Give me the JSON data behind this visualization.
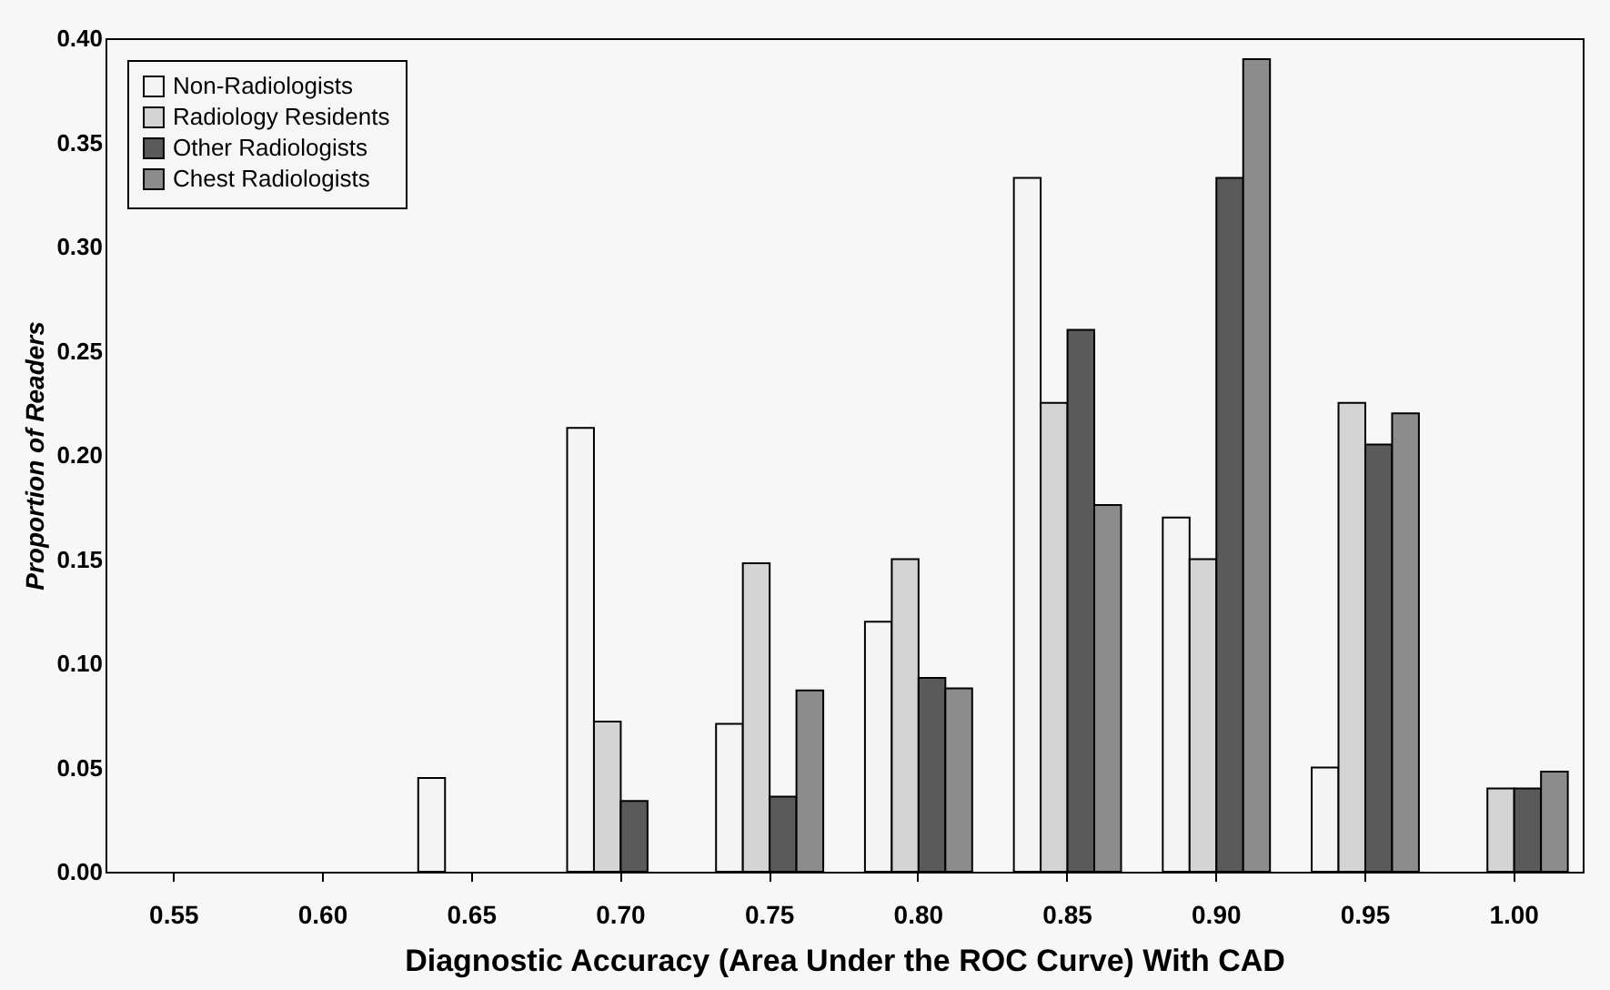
{
  "chart_data": {
    "type": "bar",
    "xlabel": "Diagnostic Accuracy (Area Under the ROC Curve) With CAD",
    "ylabel": "Proportion of Readers",
    "categories": [
      "0.55",
      "0.60",
      "0.65",
      "0.70",
      "0.75",
      "0.80",
      "0.85",
      "0.90",
      "0.95",
      "1.00"
    ],
    "series": [
      {
        "name": "Non-Radiologists",
        "color": "#f4f4f4",
        "values": [
          null,
          null,
          0.045,
          0.213,
          0.071,
          0.12,
          0.333,
          0.17,
          0.05,
          null
        ]
      },
      {
        "name": "Radiology Residents",
        "color": "#d4d4d4",
        "values": [
          null,
          null,
          null,
          0.072,
          0.148,
          0.15,
          0.225,
          0.15,
          0.225,
          0.04
        ]
      },
      {
        "name": "Other Radiologists",
        "color": "#5a5a5a",
        "values": [
          null,
          null,
          null,
          0.034,
          0.036,
          0.093,
          0.26,
          0.333,
          0.205,
          0.04
        ]
      },
      {
        "name": "Chest Radiologists",
        "color": "#8c8c8c",
        "values": [
          null,
          null,
          null,
          null,
          0.087,
          0.088,
          0.176,
          0.39,
          0.22,
          0.048
        ]
      }
    ],
    "ylim": [
      0,
      0.4
    ],
    "yticks": [
      {
        "value": 0,
        "label": "0.00"
      },
      0.05,
      {
        "value": 0.1,
        "label": "0.10"
      },
      0.15,
      {
        "value": 0.2,
        "label": "0.20"
      },
      0.25,
      {
        "value": 0.3,
        "label": "0.30"
      },
      0.35,
      {
        "value": 0.4,
        "label": "0.40"
      }
    ],
    "grid": false,
    "legend": "top left"
  }
}
